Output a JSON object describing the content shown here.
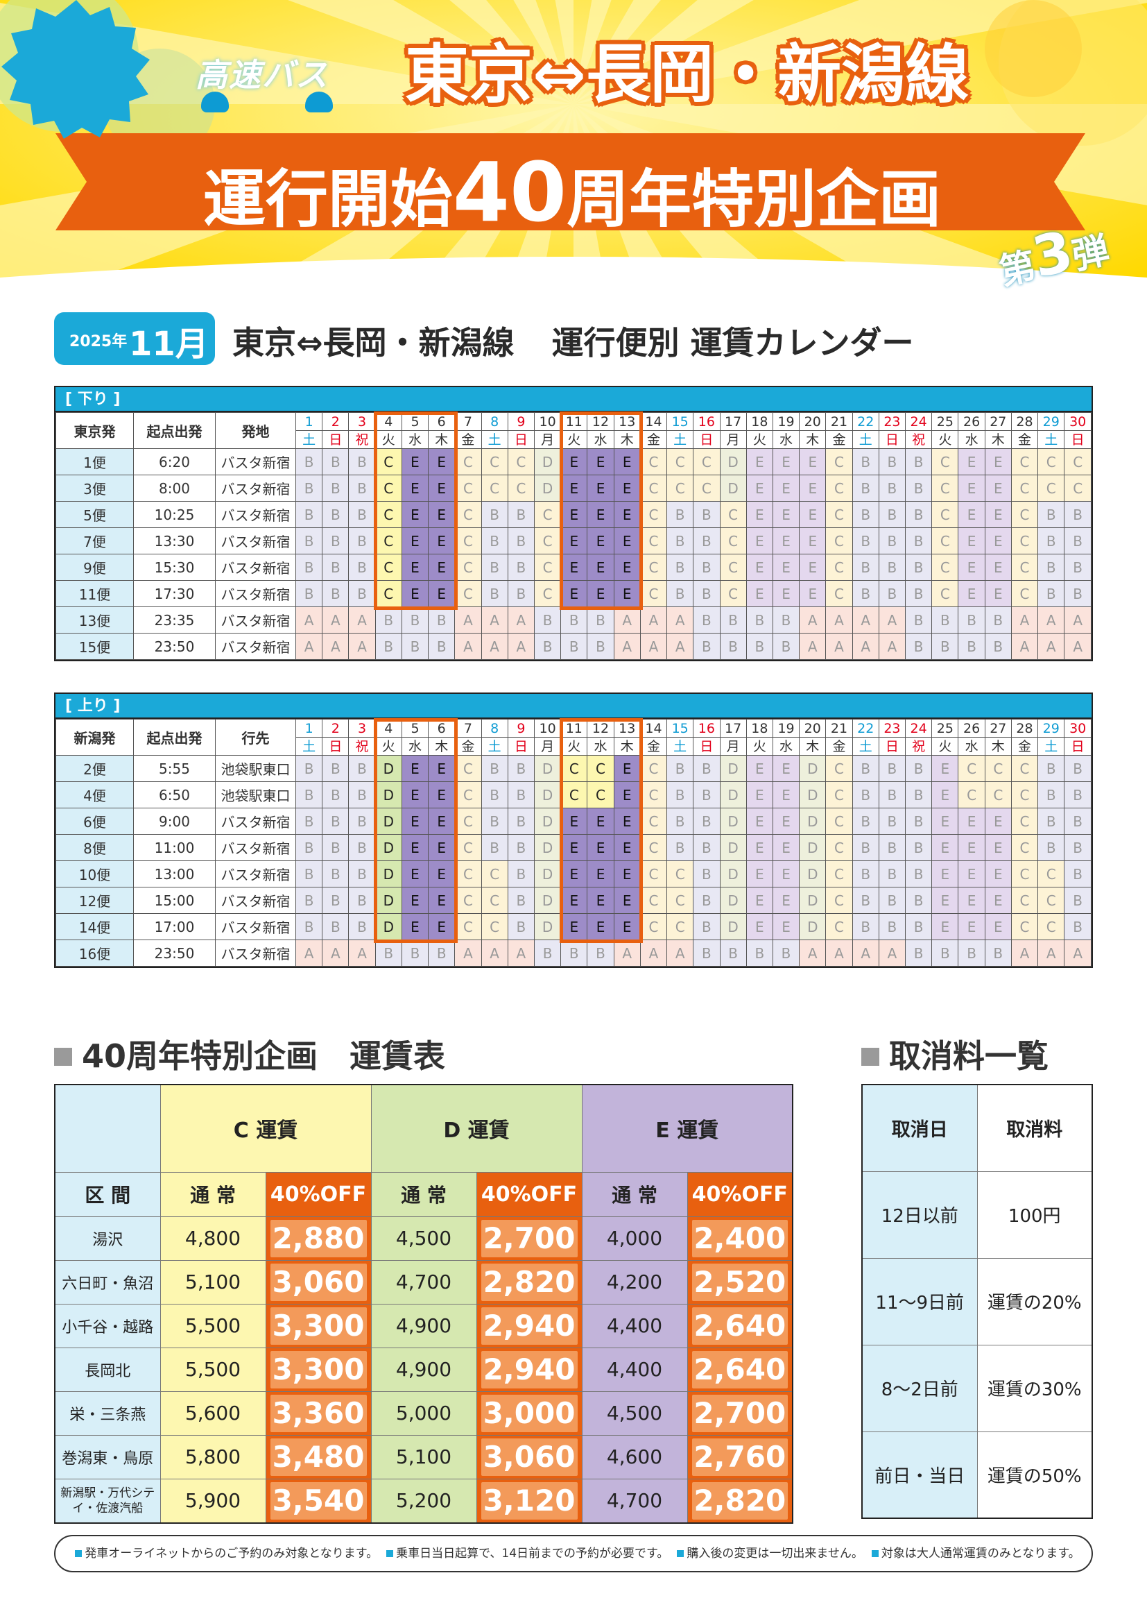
{
  "header": {
    "brand": "高速バス",
    "route": "東京⇔長岡・新潟線",
    "campaign_pre": "運行開始",
    "campaign_num": "40",
    "campaign_post": "周年特別企画",
    "badge_pre": "第",
    "badge_num": "3",
    "badge_post": "弾"
  },
  "section": {
    "year": "2025年",
    "month": "11月",
    "route": "東京⇔長岡・新潟線",
    "title": "運行便別 運賃カレンダー"
  },
  "colors": {
    "accent": "#e8600f",
    "blue": "#1ba9d8",
    "fareC": "#fdf7b0",
    "fareD": "#d6e8b0",
    "fareE": "#9d8cc8",
    "fareA": "#fbe3dc"
  },
  "days": [
    {
      "d": "1",
      "w": "土",
      "c": "sat"
    },
    {
      "d": "2",
      "w": "日",
      "c": "sun"
    },
    {
      "d": "3",
      "w": "祝",
      "c": "sun"
    },
    {
      "d": "4",
      "w": "火",
      "c": ""
    },
    {
      "d": "5",
      "w": "水",
      "c": ""
    },
    {
      "d": "6",
      "w": "木",
      "c": ""
    },
    {
      "d": "7",
      "w": "金",
      "c": ""
    },
    {
      "d": "8",
      "w": "土",
      "c": "sat"
    },
    {
      "d": "9",
      "w": "日",
      "c": "sun"
    },
    {
      "d": "10",
      "w": "月",
      "c": ""
    },
    {
      "d": "11",
      "w": "火",
      "c": ""
    },
    {
      "d": "12",
      "w": "水",
      "c": ""
    },
    {
      "d": "13",
      "w": "木",
      "c": ""
    },
    {
      "d": "14",
      "w": "金",
      "c": ""
    },
    {
      "d": "15",
      "w": "土",
      "c": "sat"
    },
    {
      "d": "16",
      "w": "日",
      "c": "sun"
    },
    {
      "d": "17",
      "w": "月",
      "c": ""
    },
    {
      "d": "18",
      "w": "火",
      "c": ""
    },
    {
      "d": "19",
      "w": "水",
      "c": ""
    },
    {
      "d": "20",
      "w": "木",
      "c": ""
    },
    {
      "d": "21",
      "w": "金",
      "c": ""
    },
    {
      "d": "22",
      "w": "土",
      "c": "sat"
    },
    {
      "d": "23",
      "w": "日",
      "c": "sun"
    },
    {
      "d": "24",
      "w": "祝",
      "c": "sun"
    },
    {
      "d": "25",
      "w": "火",
      "c": ""
    },
    {
      "d": "26",
      "w": "水",
      "c": ""
    },
    {
      "d": "27",
      "w": "木",
      "c": ""
    },
    {
      "d": "28",
      "w": "金",
      "c": ""
    },
    {
      "d": "29",
      "w": "土",
      "c": "sat"
    },
    {
      "d": "30",
      "w": "日",
      "c": "sun"
    }
  ],
  "down": {
    "label": "[ 下り ]",
    "col1": "東京発",
    "col2": "起点出発",
    "col3": "発地",
    "special_days": [
      4,
      5,
      6,
      11,
      12,
      13
    ],
    "rows": [
      {
        "no": "1便",
        "time": "6:20",
        "stop": "バスタ新宿",
        "fares": "BBBCEECCCDEEECCCDEEECBBBCEECCC"
      },
      {
        "no": "3便",
        "time": "8:00",
        "stop": "バスタ新宿",
        "fares": "BBBCEECCCDEEECCCDEEECBBBCEECCC"
      },
      {
        "no": "5便",
        "time": "10:25",
        "stop": "バスタ新宿",
        "fares": "BBBCEECBBCEEECBBCEEECBBBCEECBB"
      },
      {
        "no": "7便",
        "time": "13:30",
        "stop": "バスタ新宿",
        "fares": "BBBCEECBBCEEECBBCEEECBBBCEECBB"
      },
      {
        "no": "9便",
        "time": "15:30",
        "stop": "バスタ新宿",
        "fares": "BBBCEECBBCEEECBBCEEECBBBCEECBB"
      },
      {
        "no": "11便",
        "time": "17:30",
        "stop": "バスタ新宿",
        "fares": "BBBCEECBBCEEECBBCEEECBBBCEECBB"
      },
      {
        "no": "13便",
        "time": "23:35",
        "stop": "バスタ新宿",
        "fares": "AAABBBAAABBBAAABBBBAAAABBBBAAA"
      },
      {
        "no": "15便",
        "time": "23:50",
        "stop": "バスタ新宿",
        "fares": "AAABBBAAABBBAAABBBBAAAABBBBAAA"
      }
    ]
  },
  "up": {
    "label": "[ 上り ]",
    "col1": "新潟発",
    "col2": "起点出発",
    "col3": "行先",
    "special_days": [
      4,
      5,
      6,
      11,
      12,
      13
    ],
    "rows": [
      {
        "no": "2便",
        "time": "5:55",
        "stop": "池袋駅東口",
        "fares": "BBBDEECBBDCCECBBDEEDCBBBECCCBB"
      },
      {
        "no": "4便",
        "time": "6:50",
        "stop": "池袋駅東口",
        "fares": "BBBDEECBBDCCECBBDEEDCBBBECCCBB"
      },
      {
        "no": "6便",
        "time": "9:00",
        "stop": "バスタ新宿",
        "fares": "BBBDEECBBDEEECBBDEEDCBBBEEECBB"
      },
      {
        "no": "8便",
        "time": "11:00",
        "stop": "バスタ新宿",
        "fares": "BBBDEECBBDEEECBBDEEDCBBBEEECBB"
      },
      {
        "no": "10便",
        "time": "13:00",
        "stop": "バスタ新宿",
        "fares": "BBBDEECCBDEEECCBDEEDCBBBEEECCB"
      },
      {
        "no": "12便",
        "time": "15:00",
        "stop": "バスタ新宿",
        "fares": "BBBDEECCBDEEECCBDEEDCBBBEEECCB"
      },
      {
        "no": "14便",
        "time": "17:00",
        "stop": "バスタ新宿",
        "fares": "BBBDEECCBDEEECCBDEEDCBBBEEECCB"
      },
      {
        "no": "16便",
        "time": "23:50",
        "stop": "バスタ新宿",
        "fares": "AAABBBAAABBBAAABBBBAAAABBBBAAA"
      }
    ]
  },
  "fare_table": {
    "title": "40周年特別企画　運賃表",
    "col_c": "C 運賃",
    "col_d": "D 運賃",
    "col_e": "E 運賃",
    "section": "区 間",
    "normal": "通 常",
    "off": "40%OFF",
    "rows": [
      {
        "name": "湯沢",
        "c": "4,800",
        "c_off": "2,880",
        "d": "4,500",
        "d_off": "2,700",
        "e": "4,000",
        "e_off": "2,400"
      },
      {
        "name": "六日町・魚沼",
        "c": "5,100",
        "c_off": "3,060",
        "d": "4,700",
        "d_off": "2,820",
        "e": "4,200",
        "e_off": "2,520"
      },
      {
        "name": "小千谷・越路",
        "c": "5,500",
        "c_off": "3,300",
        "d": "4,900",
        "d_off": "2,940",
        "e": "4,400",
        "e_off": "2,640"
      },
      {
        "name": "長岡北",
        "c": "5,500",
        "c_off": "3,300",
        "d": "4,900",
        "d_off": "2,940",
        "e": "4,400",
        "e_off": "2,640"
      },
      {
        "name": "栄・三条燕",
        "c": "5,600",
        "c_off": "3,360",
        "d": "5,000",
        "d_off": "3,000",
        "e": "4,500",
        "e_off": "2,700"
      },
      {
        "name": "巻潟東・鳥原",
        "c": "5,800",
        "c_off": "3,480",
        "d": "5,100",
        "d_off": "3,060",
        "e": "4,600",
        "e_off": "2,760"
      },
      {
        "name": "新潟駅・万代シテイ・佐渡汽船",
        "c": "5,900",
        "c_off": "3,540",
        "d": "5,200",
        "d_off": "3,120",
        "e": "4,700",
        "e_off": "2,820"
      }
    ]
  },
  "cancel_table": {
    "title": "取消料一覧",
    "h_date": "取消日",
    "h_fee": "取消料",
    "rows": [
      {
        "date": "12日以前",
        "fee": "100円"
      },
      {
        "date": "11～9日前",
        "fee": "運賃の20%"
      },
      {
        "date": "8～2日前",
        "fee": "運賃の30%"
      },
      {
        "date": "前日・当日",
        "fee": "運賃の50%"
      }
    ]
  },
  "notes": [
    "発車オーライネットからのご予約のみ対象となります。",
    "乗車日当日起算で、14日前までの予約が必要です。",
    "購入後の変更は一切出来ません。",
    "対象は大人通常運賃のみとなります。"
  ]
}
